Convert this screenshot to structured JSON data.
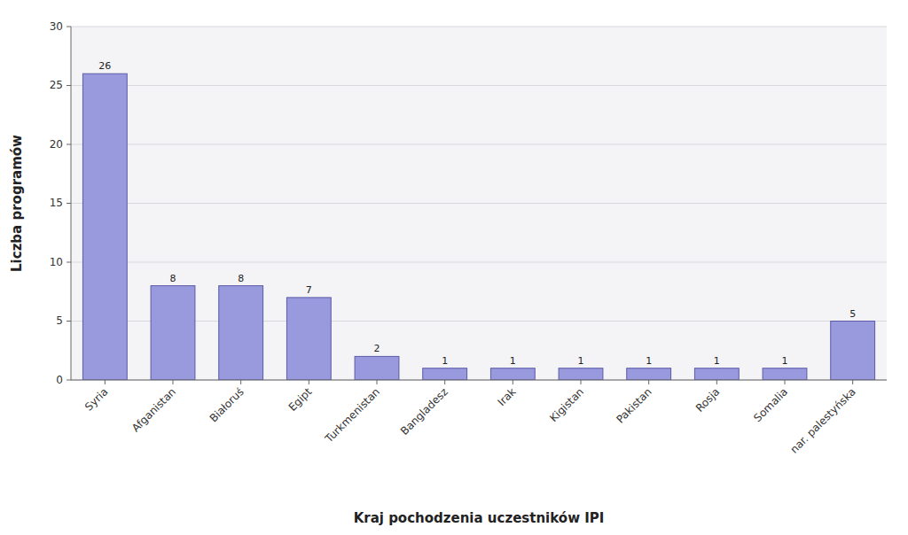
{
  "chart_data": {
    "type": "bar",
    "categories": [
      "Syria",
      "Afganistan",
      "Białoruś",
      "Egipt",
      "Turkmenistan",
      "Bangladesz",
      "Irak",
      "Kigistan",
      "Pakistan",
      "Rosja",
      "Somalia",
      "nar. palestyńska"
    ],
    "values": [
      26,
      8,
      8,
      7,
      2,
      1,
      1,
      1,
      1,
      1,
      1,
      5
    ],
    "color": "#9999DD",
    "xlabel": "Kraj pochodzenia uczestników IPI",
    "ylabel": "Liczba programów",
    "ylim": [
      0,
      30
    ],
    "yticks": [
      0,
      5,
      10,
      15,
      20,
      25,
      30
    ],
    "grid": true,
    "data_labels": true
  }
}
